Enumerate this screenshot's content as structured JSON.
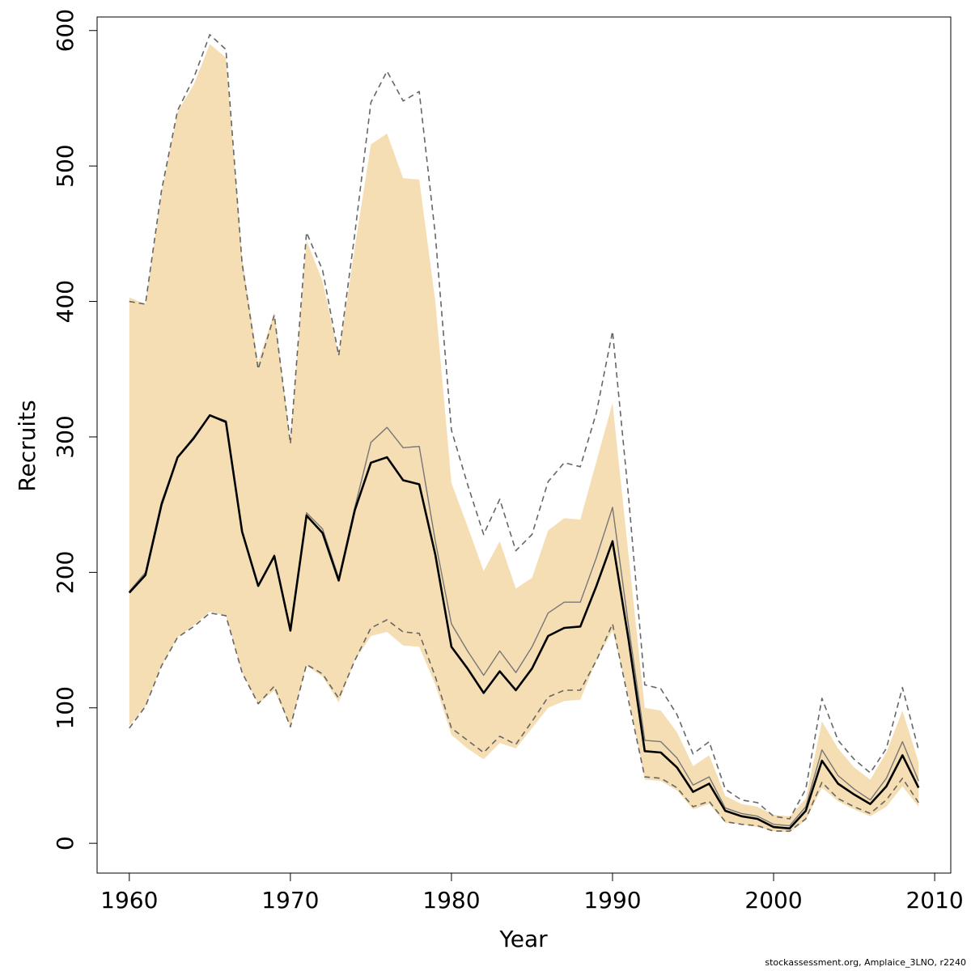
{
  "chart_data": {
    "type": "line",
    "xlabel": "Year",
    "ylabel": "Recruits",
    "xlim": [
      1958,
      2011
    ],
    "ylim": [
      -22,
      610
    ],
    "xticks": [
      1960,
      1970,
      1980,
      1990,
      2000,
      2010
    ],
    "yticks": [
      0,
      100,
      200,
      300,
      400,
      500,
      600
    ],
    "grid": false,
    "years": [
      1960,
      1961,
      1962,
      1963,
      1964,
      1965,
      1966,
      1967,
      1968,
      1969,
      1970,
      1971,
      1972,
      1973,
      1974,
      1975,
      1976,
      1977,
      1978,
      1979,
      1980,
      1981,
      1982,
      1983,
      1984,
      1985,
      1986,
      1987,
      1988,
      1989,
      1990,
      1991,
      1992,
      1993,
      1994,
      1995,
      1996,
      1997,
      1998,
      1999,
      2000,
      2001,
      2002,
      2003,
      2004,
      2005,
      2006,
      2007,
      2008,
      2009
    ],
    "band_upper": [
      403,
      398,
      480,
      540,
      560,
      590,
      580,
      432,
      355,
      392,
      297,
      445,
      415,
      360,
      440,
      516,
      524,
      491,
      490,
      400,
      266,
      234,
      201,
      223,
      188,
      196,
      231,
      240,
      239,
      282,
      325,
      212,
      100,
      98,
      82,
      57,
      65,
      35,
      29,
      27,
      21,
      20,
      33,
      90,
      70,
      56,
      47,
      67,
      98,
      60
    ],
    "band_lower": [
      87,
      101,
      131,
      152,
      161,
      171,
      168,
      126,
      103,
      113,
      86,
      131,
      123,
      104,
      135,
      153,
      156,
      146,
      145,
      117,
      80,
      70,
      62,
      74,
      70,
      85,
      100,
      105,
      106,
      135,
      157,
      108,
      47,
      46,
      39,
      25,
      29,
      15,
      14,
      12,
      9,
      8,
      17,
      41,
      31,
      25,
      20,
      27,
      42,
      27
    ],
    "series": [
      {
        "values": [
          186,
          200,
          252,
          285,
          300,
          316,
          312,
          231,
          190,
          213,
          158,
          244,
          232,
          196,
          248,
          296,
          307,
          292,
          293,
          223,
          162,
          142,
          124,
          142,
          126,
          145,
          170,
          178,
          178,
          211,
          248,
          160,
          76,
          75,
          63,
          43,
          49,
          26,
          22,
          20,
          14,
          13,
          27,
          69,
          50,
          40,
          32,
          48,
          75,
          46
        ],
        "color": "#777777",
        "style": "solid",
        "width": 1.4
      },
      {
        "values": [
          185,
          198,
          250,
          285,
          299,
          316,
          311,
          230,
          190,
          212,
          157,
          242,
          229,
          194,
          246,
          281,
          285,
          268,
          265,
          213,
          145,
          129,
          111,
          127,
          113,
          129,
          153,
          159,
          160,
          190,
          223,
          150,
          68,
          67,
          56,
          38,
          44,
          24,
          20,
          18,
          12,
          11,
          24,
          61,
          44,
          36,
          29,
          42,
          65,
          41
        ],
        "color": "#000000",
        "style": "solid",
        "width": 2.6
      },
      {
        "values": [
          400,
          398,
          482,
          541,
          565,
          597,
          586,
          428,
          350,
          390,
          295,
          451,
          423,
          360,
          450,
          547,
          570,
          548,
          555,
          449,
          305,
          265,
          228,
          254,
          216,
          228,
          267,
          281,
          278,
          318,
          378,
          255,
          117,
          114,
          95,
          66,
          75,
          40,
          32,
          30,
          20,
          18,
          40,
          107,
          76,
          62,
          52,
          70,
          115,
          69
        ],
        "color": "#666666",
        "style": "dashed",
        "width": 1.6
      },
      {
        "values": [
          85,
          101,
          131,
          152,
          160,
          170,
          168,
          126,
          103,
          116,
          86,
          132,
          125,
          107,
          135,
          159,
          165,
          156,
          155,
          123,
          85,
          76,
          67,
          79,
          73,
          90,
          108,
          113,
          113,
          135,
          162,
          105,
          49,
          48,
          41,
          27,
          31,
          16,
          14,
          13,
          9,
          9,
          18,
          45,
          33,
          27,
          22,
          32,
          48,
          30
        ],
        "color": "#666666",
        "style": "dashed",
        "width": 1.6
      }
    ],
    "colors": {
      "band": "#f5deb3",
      "axis": "#000000",
      "frame": "#000000"
    }
  },
  "credit": "stockassessment.org, Amplaice_3LNO, r2240"
}
